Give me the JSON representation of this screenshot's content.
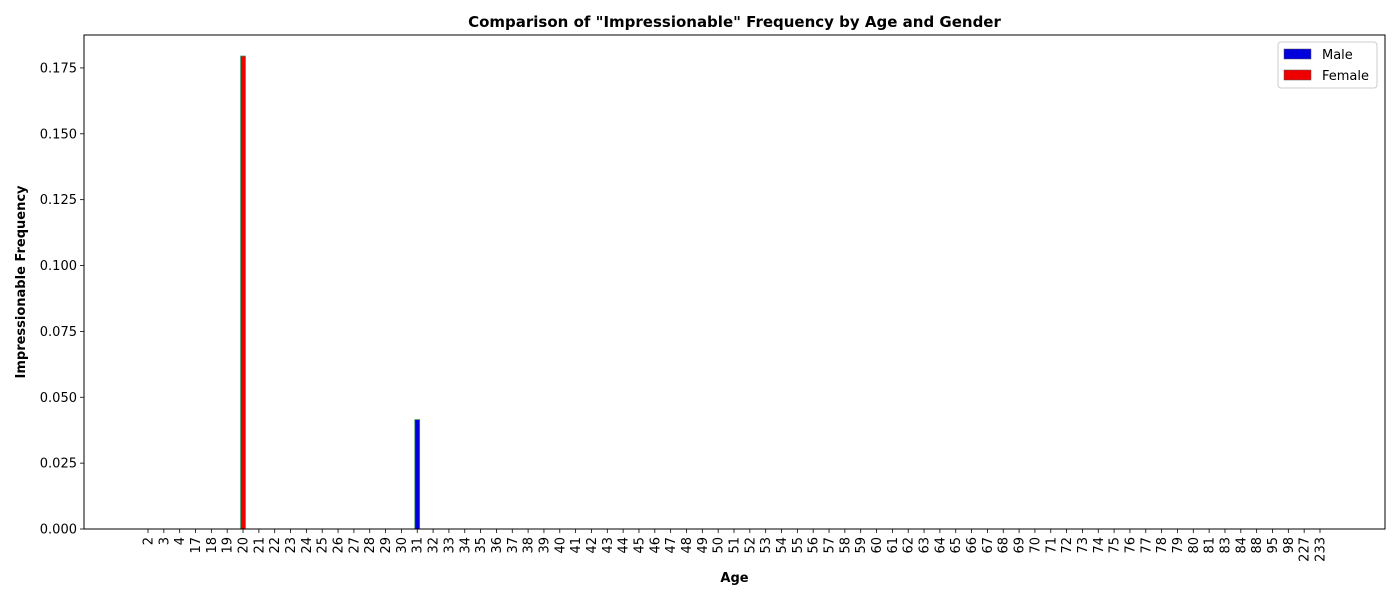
{
  "chart_data": {
    "type": "bar",
    "title": "Comparison of \"Impressionable\" Frequency by Age and Gender",
    "xlabel": "Age",
    "ylabel": "Impressionable Frequency",
    "ylim": [
      0,
      0.1875
    ],
    "yticks": [
      0,
      0.025,
      0.05,
      0.075,
      0.1,
      0.125,
      0.15,
      0.175
    ],
    "ytick_labels": [
      "0.000",
      "0.025",
      "0.050",
      "0.075",
      "0.100",
      "0.125",
      "0.150",
      "0.175"
    ],
    "grid": false,
    "legend_position": "top-right",
    "categories": [
      "2",
      "3",
      "4",
      "17",
      "18",
      "19",
      "20",
      "21",
      "22",
      "23",
      "24",
      "25",
      "26",
      "27",
      "28",
      "29",
      "30",
      "31",
      "32",
      "33",
      "34",
      "35",
      "36",
      "37",
      "38",
      "39",
      "40",
      "41",
      "42",
      "43",
      "44",
      "45",
      "46",
      "47",
      "48",
      "49",
      "50",
      "51",
      "52",
      "53",
      "54",
      "55",
      "56",
      "57",
      "58",
      "59",
      "60",
      "61",
      "62",
      "63",
      "64",
      "65",
      "66",
      "67",
      "68",
      "69",
      "70",
      "71",
      "72",
      "73",
      "74",
      "75",
      "76",
      "77",
      "78",
      "79",
      "80",
      "81",
      "83",
      "84",
      "88",
      "95",
      "98",
      "227",
      "233"
    ],
    "series": [
      {
        "name": "Male",
        "color": "#0000dd",
        "edge_color": "#2e8b57",
        "values": [
          0,
          0,
          0,
          0,
          0,
          0,
          0,
          0,
          0,
          0,
          0,
          0,
          0,
          0,
          0,
          0,
          0,
          0.0415,
          0,
          0,
          0,
          0,
          0,
          0,
          0,
          0,
          0,
          0,
          0,
          0,
          0,
          0,
          0,
          0,
          0,
          0,
          0,
          0,
          0,
          0,
          0,
          0,
          0,
          0,
          0,
          0,
          0,
          0,
          0,
          0,
          0,
          0,
          0,
          0,
          0,
          0,
          0,
          0,
          0,
          0,
          0,
          0,
          0,
          0,
          0,
          0,
          0,
          0,
          0,
          0,
          0,
          0,
          0,
          0,
          0
        ]
      },
      {
        "name": "Female",
        "color": "#ee0000",
        "edge_color": "#2e8b57",
        "values": [
          0,
          0,
          0,
          0,
          0,
          0,
          0.1795,
          0,
          0,
          0,
          0,
          0,
          0,
          0,
          0,
          0,
          0,
          0,
          0,
          0,
          0,
          0,
          0,
          0,
          0,
          0,
          0,
          0,
          0,
          0,
          0,
          0,
          0,
          0,
          0,
          0,
          0,
          0,
          0,
          0,
          0,
          0,
          0,
          0,
          0,
          0,
          0,
          0,
          0,
          0,
          0,
          0,
          0,
          0,
          0,
          0,
          0,
          0,
          0,
          0,
          0,
          0,
          0,
          0,
          0,
          0,
          0,
          0,
          0,
          0,
          0,
          0,
          0,
          0,
          0
        ]
      }
    ]
  }
}
